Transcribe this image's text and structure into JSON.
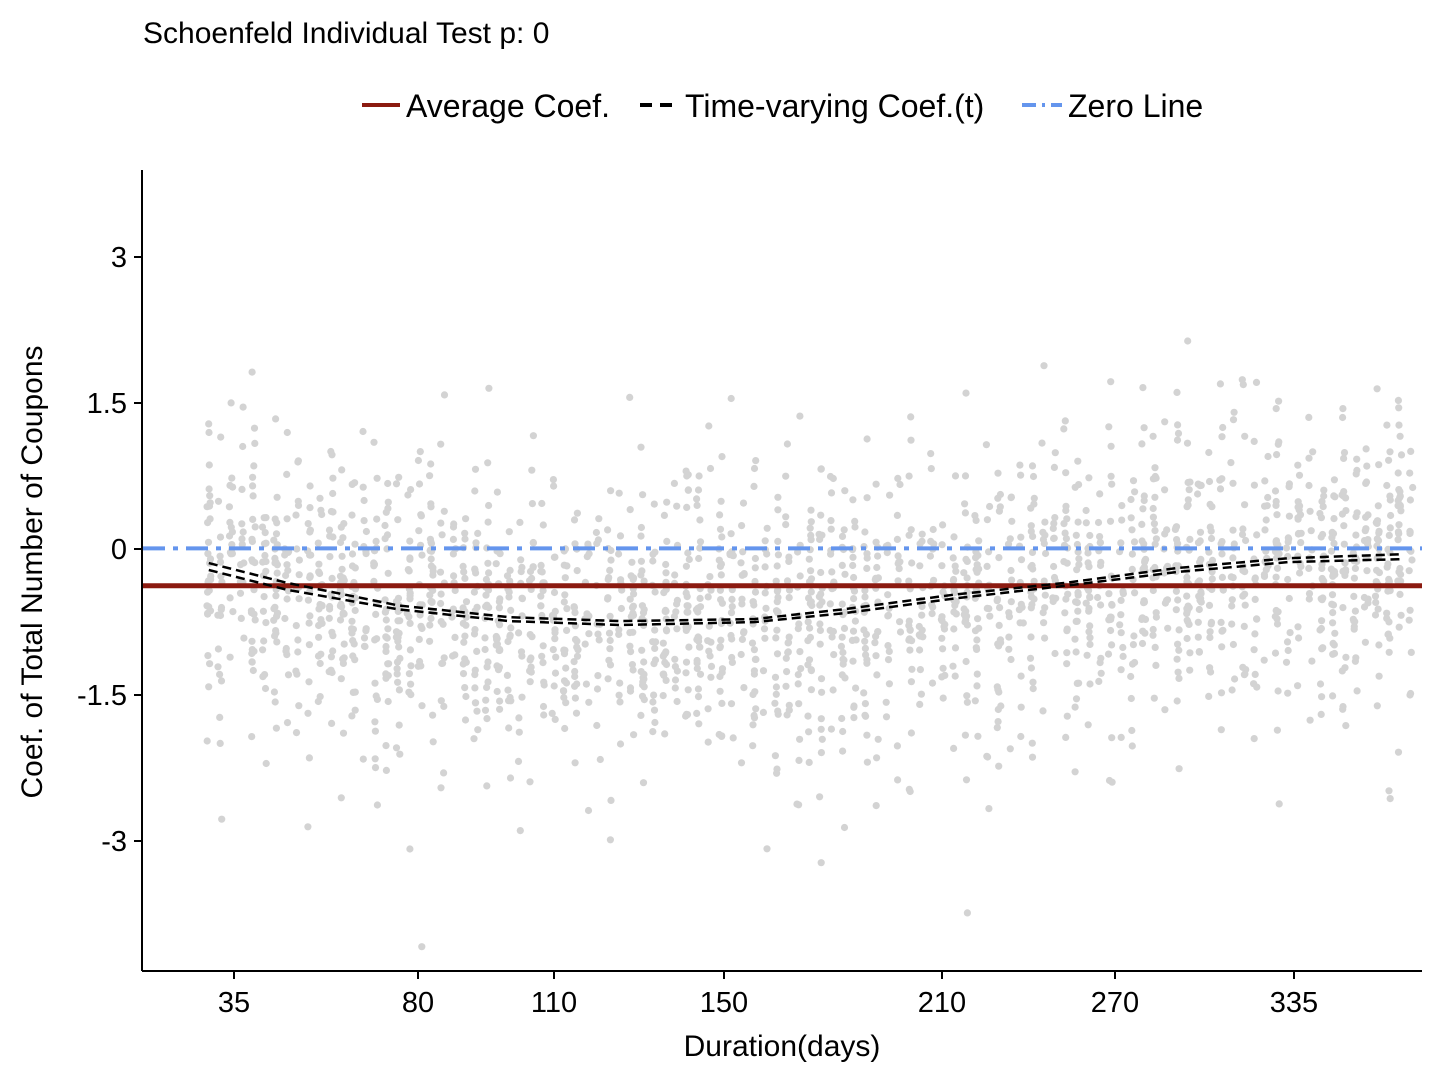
{
  "chart_data": {
    "type": "scatter",
    "title": "Schoenfeld Individual Test p: 0",
    "xlabel": "Duration(days)",
    "ylabel": "Coef. of Total Number of Coupons",
    "x_tick_labels": [
      "35",
      "80",
      "110",
      "150",
      "210",
      "270",
      "335"
    ],
    "y_ticks": [
      3,
      1.5,
      0,
      -1.5,
      -3
    ],
    "y_tick_labels": [
      "3",
      "1.5",
      "0",
      "-1.5",
      "-3"
    ],
    "ylim": [
      -4.3,
      3.85
    ],
    "x_rank_range": [
      -3,
      112
    ],
    "legend_position": "top",
    "legend": [
      {
        "key": "average",
        "label": "Average Coef.",
        "color": "#8B1A10",
        "style": "solid"
      },
      {
        "key": "timevarying",
        "label": "Time-varying Coef.(t)",
        "color": "#000000",
        "style": "dashed"
      },
      {
        "key": "zero",
        "label": "Zero Line",
        "color": "#6495ED",
        "style": "dotdash"
      }
    ],
    "average_coef": -0.38,
    "zero_line": 0,
    "time_varying_curves": [
      {
        "name": "upper",
        "x": [
          3,
          10,
          20,
          30,
          40,
          52,
          60,
          70,
          80,
          90,
          100,
          110
        ],
        "y": [
          -0.15,
          -0.35,
          -0.58,
          -0.7,
          -0.74,
          -0.72,
          -0.62,
          -0.47,
          -0.35,
          -0.2,
          -0.1,
          -0.06
        ]
      },
      {
        "name": "lower",
        "x": [
          3,
          10,
          20,
          30,
          40,
          52,
          60,
          70,
          80,
          90,
          100,
          110
        ],
        "y": [
          -0.22,
          -0.42,
          -0.62,
          -0.74,
          -0.78,
          -0.75,
          -0.66,
          -0.51,
          -0.38,
          -0.24,
          -0.14,
          -0.11
        ]
      }
    ],
    "scatter_color": "#D3D3D3",
    "scatter_summary": "dense vertical stacks of residual points at each event time from rank 3 to 111, clustered around the time-varying curve"
  }
}
